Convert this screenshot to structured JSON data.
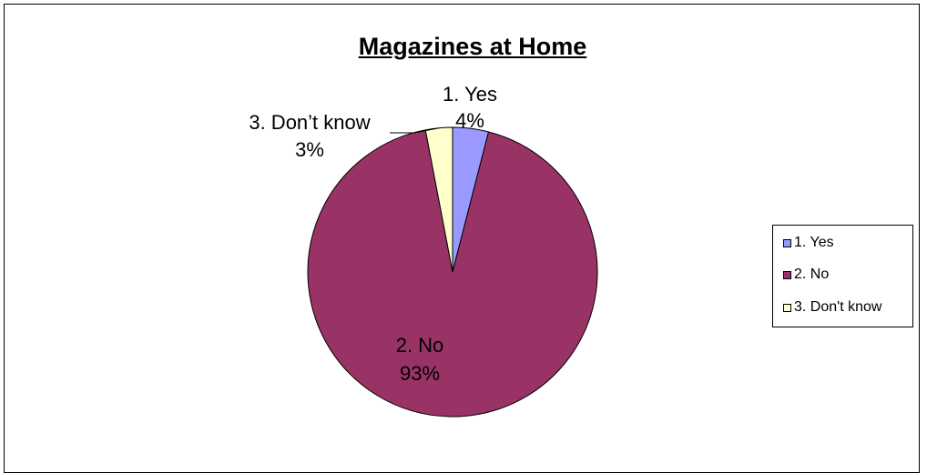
{
  "chart_data": {
    "type": "pie",
    "title": "Magazines at Home",
    "slices": [
      {
        "label": "1. Yes",
        "value": 4,
        "value_label": "4%",
        "legend_label": "1. Yes",
        "color": "#9999FF"
      },
      {
        "label": "2. No",
        "value": 93,
        "value_label": "93%",
        "legend_label": "2. No",
        "color": "#993366"
      },
      {
        "label": "3. Don’t know",
        "value": 3,
        "value_label": "3%",
        "legend_label": "3. Don't know",
        "color": "#FFFFCC"
      }
    ],
    "legend_position": "right"
  }
}
